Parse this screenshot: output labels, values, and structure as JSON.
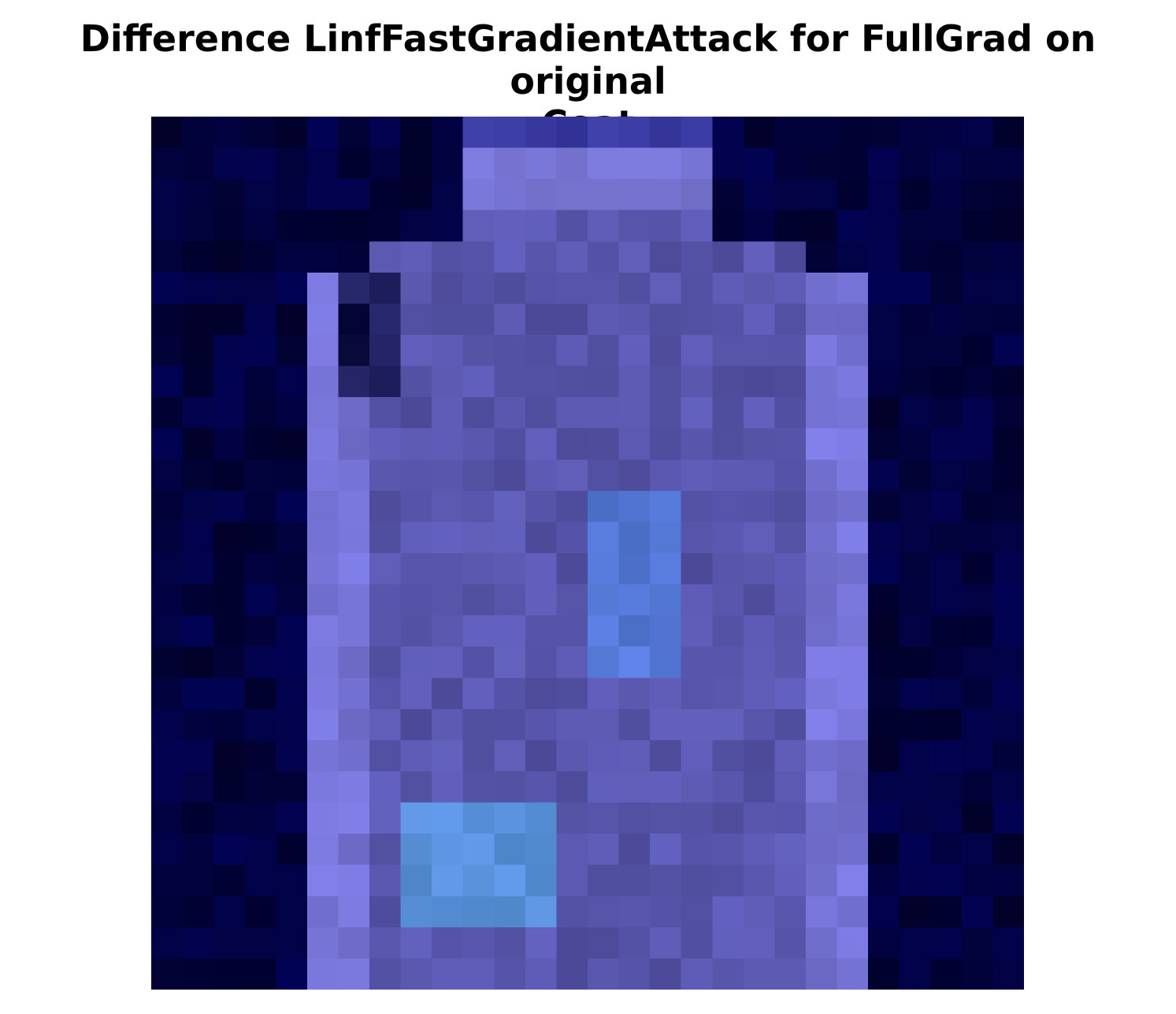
{
  "title": {
    "line1": "Difference LinfFastGradientAttack for FullGrad on original",
    "line2": "Coat"
  },
  "image": {
    "grid_rows": 28,
    "grid_cols": 28,
    "colormap": "dark-navy to light-blue/lavender",
    "background_color": "#02024a",
    "regions": [
      {
        "name": "collar-top",
        "color": "#3a3aa8"
      },
      {
        "name": "collar-light",
        "color": "#7a78d8"
      },
      {
        "name": "body",
        "color": "#5a58b0"
      },
      {
        "name": "sleeves",
        "color": "#7c7cde"
      },
      {
        "name": "center-highlight",
        "color": "#5a86dc"
      },
      {
        "name": "lower-highlight",
        "color": "#5ba0da"
      },
      {
        "name": "shadow",
        "color": "#222266"
      }
    ]
  }
}
